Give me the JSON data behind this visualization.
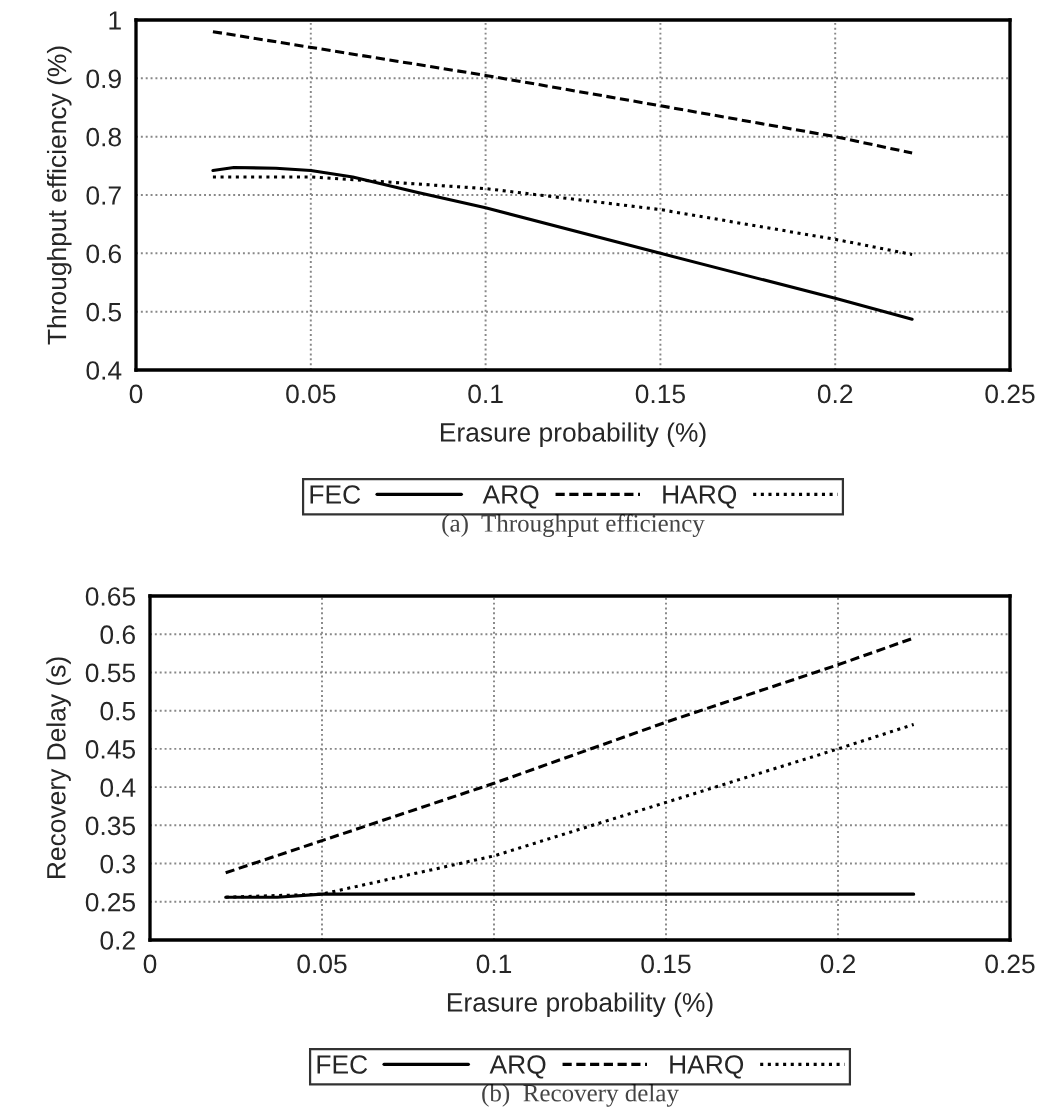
{
  "chart_data": [
    {
      "type": "line",
      "xlabel": "Erasure probability (%)",
      "ylabel": "Throughput efficiency (%)",
      "annotations": [
        "(a)  Throughput efficiency"
      ],
      "xlim": [
        0,
        0.25
      ],
      "xticks": [
        0,
        0.05,
        0.1,
        0.15,
        0.2,
        0.25
      ],
      "ylim": [
        0.4,
        1
      ],
      "yticks": [
        0.4,
        0.5,
        0.6,
        0.7,
        0.8,
        0.9,
        1
      ],
      "grid": true,
      "legend": "bottom",
      "marker": "none",
      "series": [
        {
          "name": "FEC",
          "color": "#000000",
          "line_style": "solid",
          "x": [
            0.022,
            0.028,
            0.04,
            0.05,
            0.062,
            0.08,
            0.1,
            0.15,
            0.2,
            0.222
          ],
          "values": [
            0.742,
            0.747,
            0.746,
            0.742,
            0.731,
            0.705,
            0.678,
            0.6,
            0.523,
            0.487
          ]
        },
        {
          "name": "ARQ",
          "color": "#000000",
          "line_style": "dashed",
          "x": [
            0.022,
            0.1,
            0.15,
            0.2,
            0.222
          ],
          "values": [
            0.98,
            0.905,
            0.853,
            0.8,
            0.772
          ]
        },
        {
          "name": "HARQ",
          "color": "#000000",
          "line_style": "dotted",
          "x": [
            0.022,
            0.05,
            0.1,
            0.15,
            0.2,
            0.222
          ],
          "values": [
            0.731,
            0.731,
            0.711,
            0.675,
            0.624,
            0.598
          ]
        }
      ]
    },
    {
      "type": "line",
      "xlabel": "Erasure probability (%)",
      "ylabel": "Recovery Delay (s)",
      "annotations": [
        "(b)  Recovery delay"
      ],
      "xlim": [
        0,
        0.25
      ],
      "xticks": [
        0,
        0.05,
        0.1,
        0.15,
        0.2,
        0.25
      ],
      "ylim": [
        0.2,
        0.65
      ],
      "yticks": [
        0.2,
        0.25,
        0.3,
        0.35,
        0.4,
        0.45,
        0.5,
        0.55,
        0.6,
        0.65
      ],
      "grid": true,
      "legend": "bottom",
      "marker": "none",
      "series": [
        {
          "name": "FEC",
          "color": "#000000",
          "line_style": "solid",
          "x": [
            0.022,
            0.037,
            0.05,
            0.222
          ],
          "values": [
            0.256,
            0.256,
            0.26,
            0.26
          ]
        },
        {
          "name": "ARQ",
          "color": "#000000",
          "line_style": "dashed",
          "x": [
            0.022,
            0.05,
            0.1,
            0.15,
            0.2,
            0.222
          ],
          "values": [
            0.288,
            0.33,
            0.405,
            0.485,
            0.56,
            0.595
          ]
        },
        {
          "name": "HARQ",
          "color": "#000000",
          "line_style": "dotted",
          "x": [
            0.022,
            0.05,
            0.07,
            0.1,
            0.15,
            0.2,
            0.222
          ],
          "values": [
            0.256,
            0.26,
            0.28,
            0.31,
            0.38,
            0.45,
            0.482
          ]
        }
      ]
    }
  ]
}
